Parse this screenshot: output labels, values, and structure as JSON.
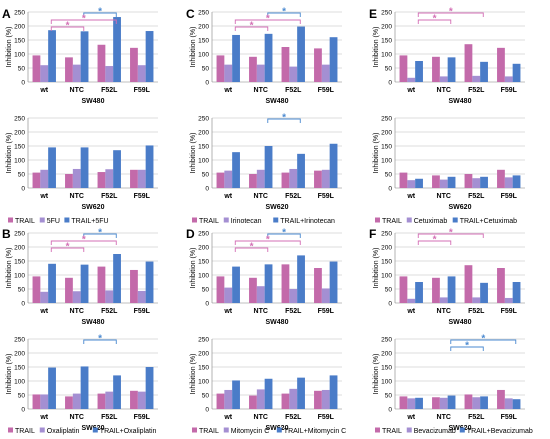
{
  "colors": {
    "trail": "#c36aaa",
    "drug": "#a48fd2",
    "combo": "#4a7cc8",
    "sig_pink": "#d36fb5",
    "sig_blue": "#4a89d0",
    "grid": "#bdbdbd",
    "axis": "#808080"
  },
  "chart_data": [
    {
      "panel": "A",
      "cell": "SW480",
      "type": "bar",
      "ylabel": "Inhibition (%)",
      "ylim": [
        0,
        250
      ],
      "yticks": [
        0,
        50,
        100,
        150,
        200,
        250
      ],
      "categories": [
        "wt",
        "NTC",
        "F52L",
        "F59L"
      ],
      "series": [
        {
          "name": "TRAIL",
          "values": [
            95,
            88,
            133,
            122
          ]
        },
        {
          "name": "5FU",
          "values": [
            60,
            62,
            57,
            60
          ]
        },
        {
          "name": "TRAIL+5FU",
          "values": [
            185,
            181,
            232,
            182
          ]
        }
      ],
      "significance": [
        {
          "from": "NTC",
          "to": "F52L",
          "label": "*",
          "color": "blue"
        },
        {
          "from": "wt",
          "to": "F52L",
          "label": "*",
          "color": "pink"
        },
        {
          "from": "wt",
          "to": "NTC",
          "label": "*",
          "color": "pink"
        }
      ]
    },
    {
      "panel": "A",
      "cell": "SW620",
      "type": "bar",
      "ylabel": "Inhibition (%)",
      "ylim": [
        0,
        250
      ],
      "yticks": [
        0,
        50,
        100,
        150,
        200,
        250
      ],
      "categories": [
        "wt",
        "NTC",
        "F52L",
        "F59L"
      ],
      "series": [
        {
          "name": "TRAIL",
          "values": [
            55,
            50,
            57,
            65
          ]
        },
        {
          "name": "5FU",
          "values": [
            65,
            68,
            67,
            65
          ]
        },
        {
          "name": "TRAIL+5FU",
          "values": [
            145,
            145,
            135,
            152
          ]
        }
      ],
      "significance": []
    },
    {
      "panel": "B",
      "cell": "SW480",
      "type": "bar",
      "ylabel": "Inhibition (%)",
      "ylim": [
        0,
        250
      ],
      "yticks": [
        0,
        50,
        100,
        150,
        200,
        250
      ],
      "categories": [
        "wt",
        "NTC",
        "F52L",
        "F59L"
      ],
      "series": [
        {
          "name": "TRAIL",
          "values": [
            95,
            90,
            130,
            118
          ]
        },
        {
          "name": "Oxaliplatin",
          "values": [
            40,
            42,
            45,
            43
          ]
        },
        {
          "name": "TRAIL+Oxaliplatin",
          "values": [
            140,
            137,
            175,
            148
          ]
        }
      ],
      "significance": [
        {
          "from": "NTC",
          "to": "F52L",
          "label": "*",
          "color": "blue"
        },
        {
          "from": "wt",
          "to": "F52L",
          "label": "*",
          "color": "pink"
        },
        {
          "from": "wt",
          "to": "NTC",
          "label": "*",
          "color": "pink"
        }
      ]
    },
    {
      "panel": "B",
      "cell": "SW620",
      "type": "bar",
      "ylabel": "Inhibition (%)",
      "ylim": [
        0,
        250
      ],
      "yticks": [
        0,
        50,
        100,
        150,
        200,
        250
      ],
      "categories": [
        "wt",
        "NTC",
        "F52L",
        "F59L"
      ],
      "series": [
        {
          "name": "TRAIL",
          "values": [
            52,
            45,
            55,
            65
          ]
        },
        {
          "name": "Oxaliplatin",
          "values": [
            52,
            55,
            62,
            62
          ]
        },
        {
          "name": "TRAIL+Oxaliplatin",
          "values": [
            148,
            152,
            120,
            150
          ]
        }
      ],
      "significance": [
        {
          "from": "NTC",
          "to": "F52L",
          "label": "*",
          "color": "blue"
        }
      ]
    },
    {
      "panel": "C",
      "cell": "SW480",
      "type": "bar",
      "ylabel": "Inhibition (%)",
      "ylim": [
        0,
        250
      ],
      "yticks": [
        0,
        50,
        100,
        150,
        200,
        250
      ],
      "categories": [
        "wt",
        "NTC",
        "F52L",
        "F59L"
      ],
      "series": [
        {
          "name": "TRAIL",
          "values": [
            95,
            90,
            125,
            120
          ]
        },
        {
          "name": "Irinotecan",
          "values": [
            62,
            62,
            55,
            62
          ]
        },
        {
          "name": "TRAIL+Irinotecan",
          "values": [
            168,
            172,
            198,
            160
          ]
        }
      ],
      "significance": [
        {
          "from": "NTC",
          "to": "F52L",
          "label": "*",
          "color": "blue"
        },
        {
          "from": "wt",
          "to": "F52L",
          "label": "*",
          "color": "pink"
        },
        {
          "from": "wt",
          "to": "NTC",
          "label": "*",
          "color": "pink"
        }
      ]
    },
    {
      "panel": "C",
      "cell": "SW620",
      "type": "bar",
      "ylabel": "Inhibition (%)",
      "ylim": [
        0,
        250
      ],
      "yticks": [
        0,
        50,
        100,
        150,
        200,
        250
      ],
      "categories": [
        "wt",
        "NTC",
        "F52L",
        "F59L"
      ],
      "series": [
        {
          "name": "TRAIL",
          "values": [
            55,
            50,
            55,
            62
          ]
        },
        {
          "name": "Irinotecan",
          "values": [
            62,
            65,
            68,
            65
          ]
        },
        {
          "name": "TRAIL+Irinotecan",
          "values": [
            128,
            150,
            122,
            158
          ]
        }
      ],
      "significance": [
        {
          "from": "NTC",
          "to": "F52L",
          "label": "*",
          "color": "blue"
        }
      ]
    },
    {
      "panel": "D",
      "cell": "SW480",
      "type": "bar",
      "ylabel": "Inhibition (%)",
      "ylim": [
        0,
        250
      ],
      "yticks": [
        0,
        50,
        100,
        150,
        200,
        250
      ],
      "categories": [
        "wt",
        "NTC",
        "F52L",
        "F59L"
      ],
      "series": [
        {
          "name": "TRAIL",
          "values": [
            95,
            90,
            138,
            125
          ]
        },
        {
          "name": "Mitomycin C",
          "values": [
            55,
            60,
            50,
            52
          ]
        },
        {
          "name": "TRAIL+Mitomycin C",
          "values": [
            130,
            138,
            170,
            148
          ]
        }
      ],
      "significance": [
        {
          "from": "NTC",
          "to": "F52L",
          "label": "*",
          "color": "blue"
        },
        {
          "from": "wt",
          "to": "F52L",
          "label": "*",
          "color": "pink"
        },
        {
          "from": "wt",
          "to": "NTC",
          "label": "*",
          "color": "pink"
        }
      ]
    },
    {
      "panel": "D",
      "cell": "SW620",
      "type": "bar",
      "ylabel": "Inhibition (%)",
      "ylim": [
        0,
        250
      ],
      "yticks": [
        0,
        50,
        100,
        150,
        200,
        250
      ],
      "categories": [
        "wt",
        "NTC",
        "F52L",
        "F59L"
      ],
      "series": [
        {
          "name": "TRAIL",
          "values": [
            55,
            48,
            55,
            65
          ]
        },
        {
          "name": "Mitomycin C",
          "values": [
            68,
            70,
            72,
            68
          ]
        },
        {
          "name": "TRAIL+Mitomycin C",
          "values": [
            102,
            108,
            112,
            120
          ]
        }
      ],
      "significance": []
    },
    {
      "panel": "E",
      "cell": "SW480",
      "type": "bar",
      "ylabel": "Inhibition (%)",
      "ylim": [
        0,
        250
      ],
      "yticks": [
        0,
        50,
        100,
        150,
        200,
        250
      ],
      "categories": [
        "wt",
        "NTC",
        "F52L",
        "F59L"
      ],
      "series": [
        {
          "name": "TRAIL",
          "values": [
            95,
            90,
            135,
            122
          ]
        },
        {
          "name": "Cetuximab",
          "values": [
            15,
            20,
            22,
            20
          ]
        },
        {
          "name": "TRAIL+Cetuximab",
          "values": [
            75,
            88,
            72,
            65
          ]
        }
      ],
      "significance": [
        {
          "from": "wt",
          "to": "F52L",
          "label": "*",
          "color": "pink"
        },
        {
          "from": "wt",
          "to": "NTC",
          "label": "*",
          "color": "pink"
        }
      ]
    },
    {
      "panel": "E",
      "cell": "SW620",
      "type": "bar",
      "ylabel": "Inhibition (%)",
      "ylim": [
        0,
        250
      ],
      "yticks": [
        0,
        50,
        100,
        150,
        200,
        250
      ],
      "categories": [
        "wt",
        "NTC",
        "F52L",
        "F59L"
      ],
      "series": [
        {
          "name": "TRAIL",
          "values": [
            55,
            45,
            50,
            65
          ]
        },
        {
          "name": "Cetuximab",
          "values": [
            28,
            30,
            35,
            38
          ]
        },
        {
          "name": "TRAIL+Cetuximab",
          "values": [
            33,
            40,
            40,
            45
          ]
        }
      ],
      "significance": []
    },
    {
      "panel": "F",
      "cell": "SW480",
      "type": "bar",
      "ylabel": "Inhibition (%)",
      "ylim": [
        0,
        250
      ],
      "yticks": [
        0,
        50,
        100,
        150,
        200,
        250
      ],
      "categories": [
        "wt",
        "NTC",
        "F52L",
        "F59L"
      ],
      "series": [
        {
          "name": "TRAIL",
          "values": [
            95,
            90,
            135,
            125
          ]
        },
        {
          "name": "Bevacizumab",
          "values": [
            15,
            20,
            20,
            18
          ]
        },
        {
          "name": "TRAIL+Bevacizumab",
          "values": [
            75,
            95,
            72,
            75
          ]
        }
      ],
      "significance": [
        {
          "from": "wt",
          "to": "F52L",
          "label": "*",
          "color": "pink"
        },
        {
          "from": "wt",
          "to": "NTC",
          "label": "*",
          "color": "pink"
        }
      ]
    },
    {
      "panel": "F",
      "cell": "SW620",
      "type": "bar",
      "ylabel": "Inhibition (%)",
      "ylim": [
        0,
        250
      ],
      "yticks": [
        0,
        50,
        100,
        150,
        200,
        250
      ],
      "categories": [
        "wt",
        "NTC",
        "F52L",
        "F59L"
      ],
      "series": [
        {
          "name": "TRAIL",
          "values": [
            45,
            42,
            52,
            68
          ]
        },
        {
          "name": "Bevacizumab",
          "values": [
            38,
            40,
            42,
            38
          ]
        },
        {
          "name": "TRAIL+Bevacizumab",
          "values": [
            40,
            48,
            45,
            35
          ]
        }
      ],
      "significance": [
        {
          "from": "NTC",
          "to": "F59L",
          "label": "*",
          "color": "blue"
        },
        {
          "from": "NTC",
          "to": "F52L",
          "label": "*",
          "color": "blue"
        }
      ]
    }
  ],
  "legends": [
    {
      "panel": "A",
      "items": [
        "TRAIL",
        "5FU",
        "TRAIL+5FU"
      ]
    },
    {
      "panel": "B",
      "items": [
        "TRAIL",
        "Oxaliplatin",
        "TRAIL+Oxaliplatin"
      ]
    },
    {
      "panel": "C",
      "items": [
        "TRAIL",
        "Irinotecan",
        "TRAIL+Irinotecan"
      ]
    },
    {
      "panel": "D",
      "items": [
        "TRAIL",
        "Mitomycin C",
        "TRAIL+Mitomycin C"
      ]
    },
    {
      "panel": "E",
      "items": [
        "TRAIL",
        "Cetuximab",
        "TRAIL+Cetuximab"
      ]
    },
    {
      "panel": "F",
      "items": [
        "TRAIL",
        "Bevacizumab",
        "TRAIL+Bevacizumab"
      ]
    }
  ]
}
